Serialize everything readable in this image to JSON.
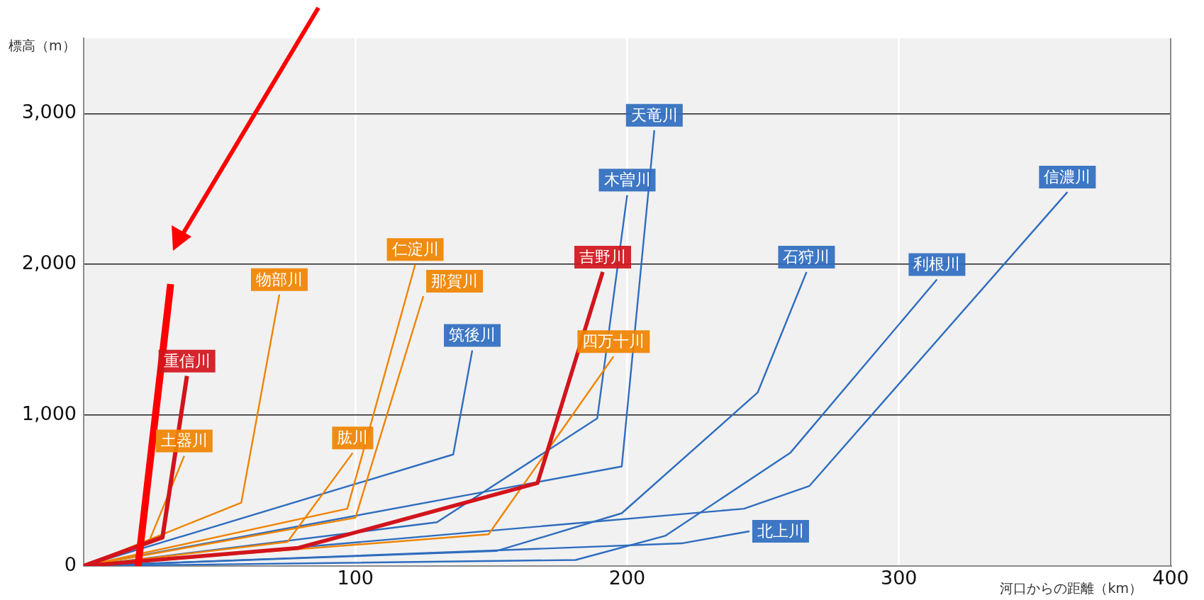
{
  "chart_data": {
    "type": "line",
    "ylabel": "標高（m）",
    "xlabel": "河口からの距離（km）",
    "xlim": [
      0,
      400
    ],
    "xticks": [
      100,
      200,
      300,
      400
    ],
    "ylim": [
      0,
      3500
    ],
    "yticks": [
      0,
      {
        "value": 1000,
        "label": "1,000"
      },
      {
        "value": 2000,
        "label": "2,000"
      },
      {
        "value": 3000,
        "label": "3,000"
      }
    ],
    "grid": true,
    "legend": false,
    "marker": "none",
    "line_style": "solid",
    "series": [
      {
        "name": "信濃川",
        "color": "#2f6dbf",
        "x": [
          0,
          243,
          267,
          362
        ],
        "values": [
          0,
          380,
          530,
          2480
        ]
      },
      {
        "name": "利根川",
        "color": "#2f6dbf",
        "x": [
          0,
          181,
          214,
          260,
          314
        ],
        "values": [
          0,
          40,
          200,
          750,
          1900
        ]
      },
      {
        "name": "石狩川",
        "color": "#2f6dbf",
        "x": [
          0,
          152,
          198,
          248,
          266
        ],
        "values": [
          0,
          100,
          350,
          1150,
          1950
        ]
      },
      {
        "name": "北上川",
        "color": "#2f6dbf",
        "x": [
          0,
          220,
          245
        ],
        "values": [
          0,
          150,
          230
        ]
      },
      {
        "name": "天竜川",
        "color": "#2f6dbf",
        "x": [
          0,
          198,
          210
        ],
        "values": [
          0,
          660,
          2890
        ]
      },
      {
        "name": "木曽川",
        "color": "#2f6dbf",
        "x": [
          0,
          130,
          189,
          200
        ],
        "values": [
          0,
          290,
          980,
          2460
        ]
      },
      {
        "name": "筑後川",
        "color": "#2f6dbf",
        "x": [
          0,
          136,
          143
        ],
        "values": [
          0,
          740,
          1430
        ]
      },
      {
        "name": "四万十川",
        "color": "#f08300",
        "x": [
          0,
          149,
          195
        ],
        "values": [
          0,
          210,
          1390
        ]
      },
      {
        "name": "那賀川",
        "color": "#f08300",
        "x": [
          0,
          100,
          125
        ],
        "values": [
          0,
          320,
          1790
        ]
      },
      {
        "name": "仁淀川",
        "color": "#f08300",
        "x": [
          0,
          97,
          122
        ],
        "values": [
          0,
          380,
          2000
        ]
      },
      {
        "name": "肱川",
        "color": "#f08300",
        "x": [
          0,
          75,
          99
        ],
        "values": [
          0,
          160,
          750
        ]
      },
      {
        "name": "物部川",
        "color": "#f08300",
        "x": [
          0,
          58,
          72
        ],
        "values": [
          0,
          420,
          1800
        ]
      },
      {
        "name": "土器川",
        "color": "#f08300",
        "x": [
          0,
          24,
          37
        ],
        "values": [
          0,
          160,
          730
        ]
      },
      {
        "name": "吉野川",
        "color": "#d2141c",
        "x": [
          0,
          79,
          167,
          191
        ],
        "values": [
          0,
          120,
          550,
          1950
        ]
      },
      {
        "name": "重信川",
        "color": "#d2141c",
        "x": [
          0,
          29,
          38
        ],
        "values": [
          0,
          190,
          1260
        ]
      },
      {
        "color": "#ff0000",
        "x": [
          20,
          32
        ],
        "values": [
          0,
          1870
        ]
      }
    ]
  }
}
